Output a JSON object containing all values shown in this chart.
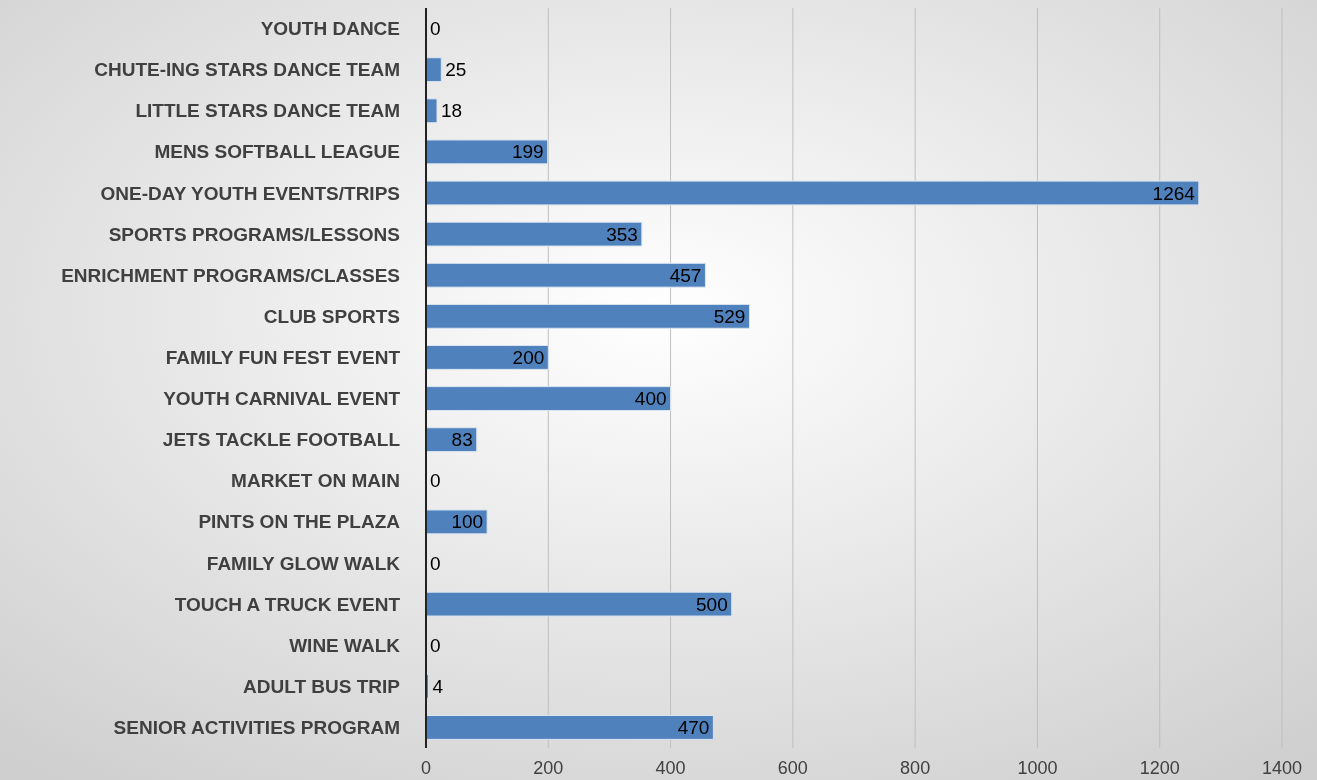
{
  "chart_data": {
    "type": "bar",
    "orientation": "horizontal",
    "categories": [
      "YOUTH DANCE",
      "CHUTE-ING STARS DANCE TEAM",
      "LITTLE STARS DANCE TEAM",
      "MENS SOFTBALL LEAGUE",
      "ONE-DAY YOUTH EVENTS/TRIPS",
      "SPORTS PROGRAMS/LESSONS",
      "ENRICHMENT PROGRAMS/CLASSES",
      "CLUB SPORTS",
      "FAMILY FUN FEST EVENT",
      "YOUTH CARNIVAL EVENT",
      "JETS TACKLE FOOTBALL",
      "MARKET ON MAIN",
      "PINTS ON THE PLAZA",
      "FAMILY GLOW WALK",
      "TOUCH A TRUCK EVENT",
      "WINE WALK",
      "ADULT BUS TRIP",
      "SENIOR ACTIVITIES PROGRAM"
    ],
    "values": [
      0,
      25,
      18,
      199,
      1264,
      353,
      457,
      529,
      200,
      400,
      83,
      0,
      100,
      0,
      500,
      0,
      4,
      470
    ],
    "color": "#4f81bd",
    "xlim": [
      0,
      1400
    ],
    "xticks": [
      0,
      200,
      400,
      600,
      800,
      1000,
      1200,
      1400
    ],
    "grid": "x",
    "data_labels": true
  }
}
